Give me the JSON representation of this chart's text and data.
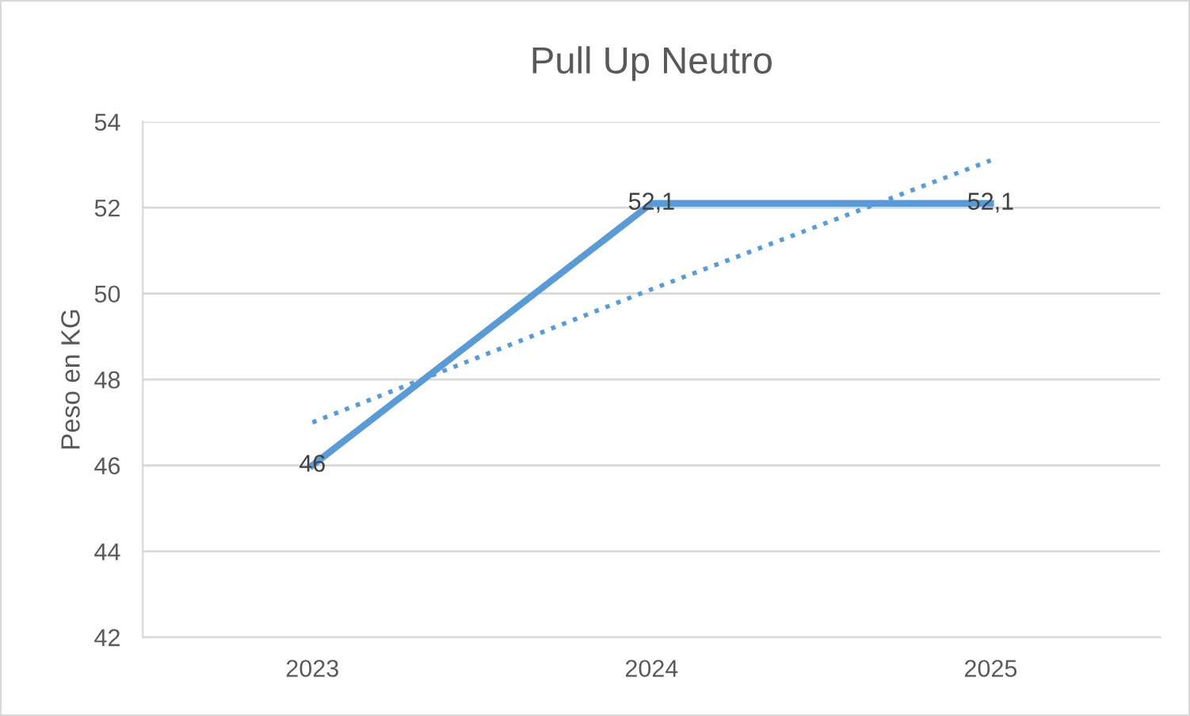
{
  "chart_data": {
    "type": "line",
    "title": "Pull Up Neutro",
    "ylabel": "Peso en KG",
    "categories": [
      "2023",
      "2024",
      "2025"
    ],
    "series": [
      {
        "type": "line",
        "color": "#5b9bd5",
        "values": [
          46,
          52.1,
          52.1
        ],
        "value_labels": [
          "46",
          "52,1",
          "52,1"
        ],
        "line_style": "solid"
      },
      {
        "type": "line",
        "color": "#5b9bd5",
        "values": [
          47.0,
          50.1,
          53.1
        ],
        "line_style": "dotted"
      }
    ],
    "ylim": [
      42,
      54
    ],
    "yticks": [
      42,
      44,
      46,
      48,
      50,
      52,
      54
    ],
    "grid": "y",
    "marker": "none"
  }
}
